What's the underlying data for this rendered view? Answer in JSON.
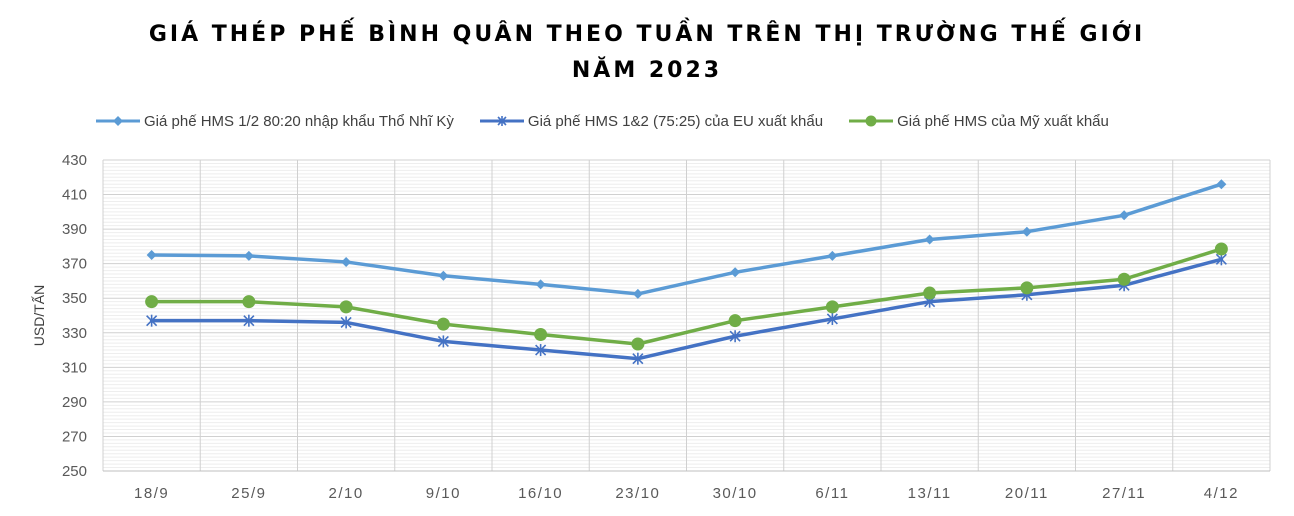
{
  "chart_data": {
    "type": "line",
    "title_line1": "GIÁ THÉP PHẾ BÌNH QUÂN THEO TUẦN TRÊN THỊ TRƯỜNG THẾ GIỚI",
    "title_line2": "NĂM 2023",
    "xlabel": "",
    "ylabel": "USD/TẤN",
    "ylim": [
      250,
      430
    ],
    "yticks": [
      250,
      270,
      290,
      310,
      330,
      350,
      370,
      390,
      410,
      430
    ],
    "categories": [
      "18/9",
      "25/9",
      "2/10",
      "9/10",
      "16/10",
      "23/10",
      "30/10",
      "6/11",
      "13/11",
      "20/11",
      "27/11",
      "4/12"
    ],
    "grid": true,
    "legend_position": "top",
    "series": [
      {
        "name": "Giá phế HMS 1/2 80:20 nhập khẩu Thổ Nhĩ Kỳ",
        "color": "#5B9BD5",
        "marker": "diamond",
        "values": [
          375,
          374.5,
          371,
          363,
          358,
          352.5,
          365,
          374.5,
          384,
          388.5,
          398,
          416
        ]
      },
      {
        "name": "Giá phế HMS 1&2 (75:25) của EU xuất khẩu",
        "color": "#4472C4",
        "marker": "asterisk",
        "values": [
          337,
          337,
          336,
          325,
          320,
          315,
          328,
          338,
          348,
          352,
          357.5,
          372.5
        ]
      },
      {
        "name": "Giá phế HMS của Mỹ xuất khẩu",
        "color": "#70AD47",
        "marker": "circle",
        "values": [
          348,
          348,
          345,
          335,
          329,
          323.5,
          337,
          345,
          353,
          356,
          361,
          378.5
        ]
      }
    ]
  }
}
